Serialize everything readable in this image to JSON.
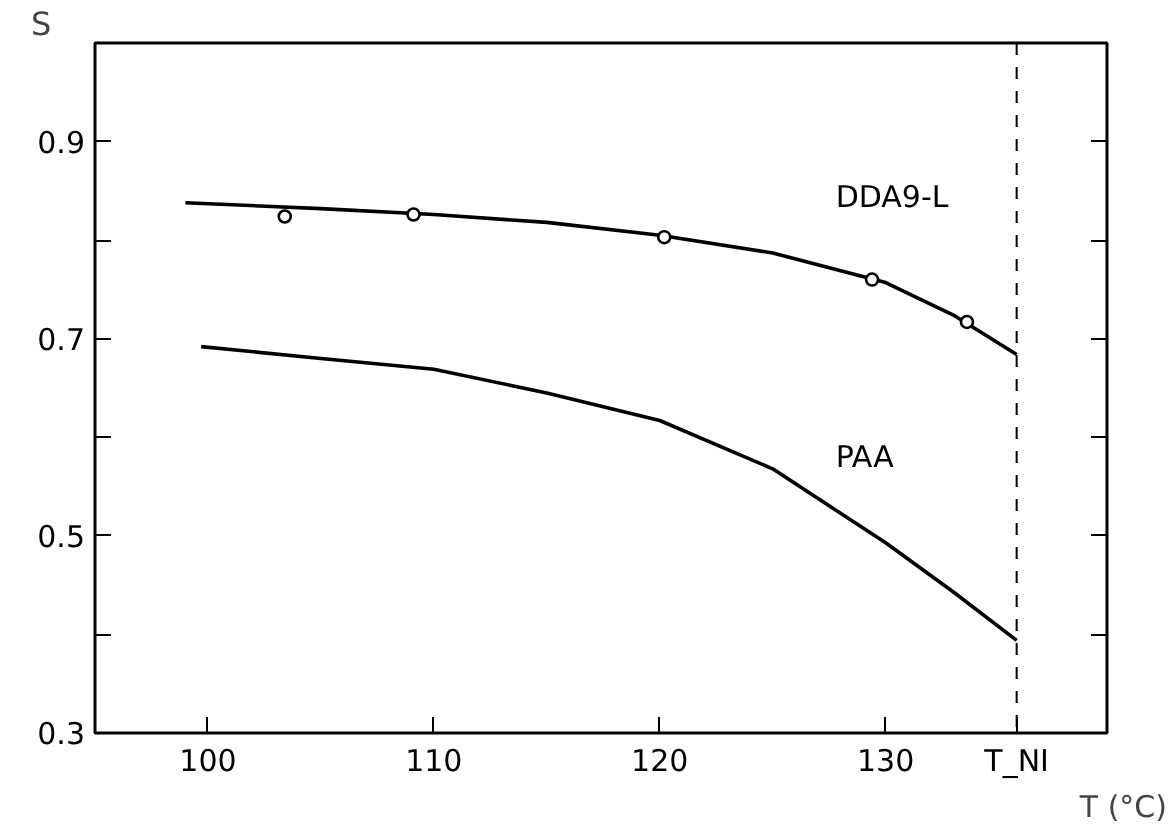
{
  "chart_data": {
    "type": "line",
    "xlabel": "T (°C)",
    "ylabel": "S",
    "xlim": [
      95,
      139.8
    ],
    "ylim": [
      0.3,
      1.0
    ],
    "xticks": [
      100,
      110,
      120,
      130
    ],
    "yticks": [
      0.3,
      {
        "value": 0.4,
        "label": null
      },
      0.5,
      {
        "value": 0.6,
        "label": null
      },
      0.7,
      {
        "value": 0.8,
        "label": null
      },
      0.9
    ],
    "grid": false,
    "line_style": "solid",
    "series": [
      {
        "name": "DDA9-L",
        "color": "#000000",
        "marker": "none",
        "x": [
          99.0,
          105,
          110,
          115,
          120,
          125,
          130,
          133,
          135.8
        ],
        "values": [
          0.838,
          0.832,
          0.826,
          0.818,
          0.805,
          0.787,
          0.757,
          0.724,
          0.684
        ]
      },
      {
        "type": "scatter",
        "color": "#000000",
        "marker": "circle",
        "x": [
          103.4,
          109.1,
          120.2,
          129.4,
          133.6
        ],
        "values": [
          0.824,
          0.826,
          0.803,
          0.76,
          0.717
        ]
      },
      {
        "name": "PAA",
        "color": "#000000",
        "marker": "none",
        "x": [
          99.7,
          105,
          110,
          115,
          120,
          125,
          130,
          133,
          135.8
        ],
        "values": [
          0.692,
          0.68,
          0.669,
          0.645,
          0.617,
          0.568,
          0.493,
          0.443,
          0.394
        ]
      }
    ],
    "ref_lines": [
      {
        "axis": "x",
        "value": 135.8,
        "label": "T_NI",
        "line_style": "dashed",
        "color": "#000000"
      }
    ]
  }
}
